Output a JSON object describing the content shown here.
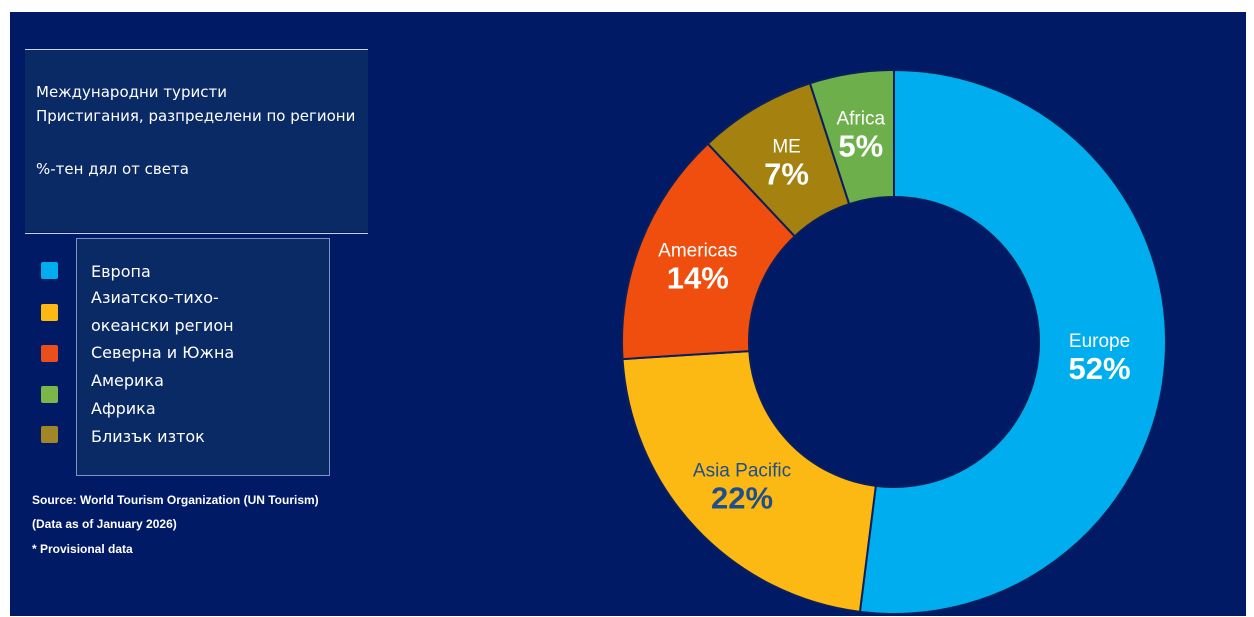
{
  "title": {
    "line1": "Международни туристи",
    "line2": "Пристигания, разпределени по региони",
    "line3": "%-тен дял от света"
  },
  "legend": {
    "colors": [
      "#00adee",
      "#fdb913",
      "#e94e1b",
      "#7ab648",
      "#a08624"
    ],
    "lines": [
      "Европа",
      "Азиатско-тихо-",
      "океански регион",
      "Северна и Южна",
      "Америка",
      "Африка",
      "Близък изток"
    ]
  },
  "source": {
    "line1": "Source: World Tourism Organization (UN Tourism)",
    "line2": "(Data as of January 2026)",
    "line3": "* Provisional data"
  },
  "chart_data": {
    "type": "pie",
    "donut": true,
    "categories": [
      "Europe",
      "Asia Pacific",
      "Americas",
      "ME",
      "Africa"
    ],
    "values": [
      52,
      22,
      14,
      7,
      5
    ],
    "value_labels": [
      "52%",
      "22%",
      "14%",
      "7%",
      "5%"
    ],
    "colors": [
      "#00adee",
      "#fdb913",
      "#f04e0e",
      "#a5820f",
      "#6db04b"
    ],
    "label_colors": [
      "#ffffff",
      "#1f4e8c",
      "#ffffff",
      "#ffffff",
      "#ffffff"
    ]
  }
}
